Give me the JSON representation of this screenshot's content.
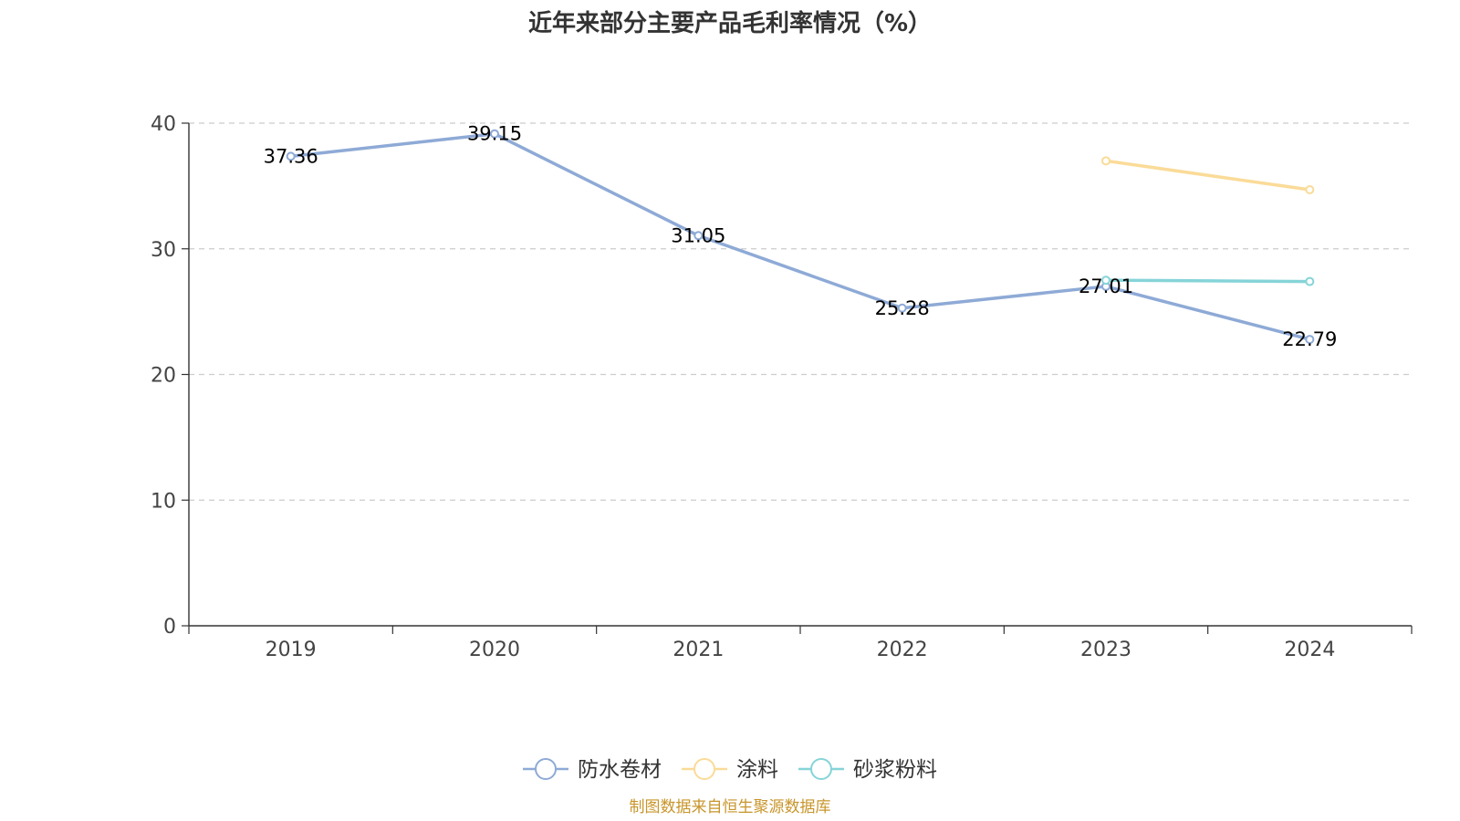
{
  "chart_data": {
    "type": "line",
    "title": "近年来部分主要产品毛利率情况（%）",
    "categories": [
      "2019",
      "2020",
      "2021",
      "2022",
      "2023",
      "2024"
    ],
    "ylim": [
      0,
      40
    ],
    "yticks": [
      0,
      10,
      20,
      30,
      40
    ],
    "ytick_labels": [
      "0",
      "10",
      "20",
      "30",
      "40"
    ],
    "grid": true,
    "legend_position": "bottom",
    "series": [
      {
        "name": "防水卷材",
        "color": "#8eaad6",
        "values": [
          37.36,
          39.15,
          31.05,
          25.28,
          27.01,
          22.79
        ],
        "labels": [
          "37.36",
          "39.15",
          "31.05",
          "25.28",
          "27.01",
          "22.79"
        ],
        "show_labels": true
      },
      {
        "name": "涂料",
        "color": "#fadb98",
        "values": [
          null,
          null,
          null,
          null,
          37.0,
          34.7
        ],
        "labels": [],
        "show_labels": false
      },
      {
        "name": "砂浆粉料",
        "color": "#86d4d8",
        "values": [
          null,
          null,
          null,
          null,
          27.5,
          27.4
        ],
        "labels": [],
        "show_labels": false
      }
    ],
    "source": "制图数据来自恒生聚源数据库"
  }
}
